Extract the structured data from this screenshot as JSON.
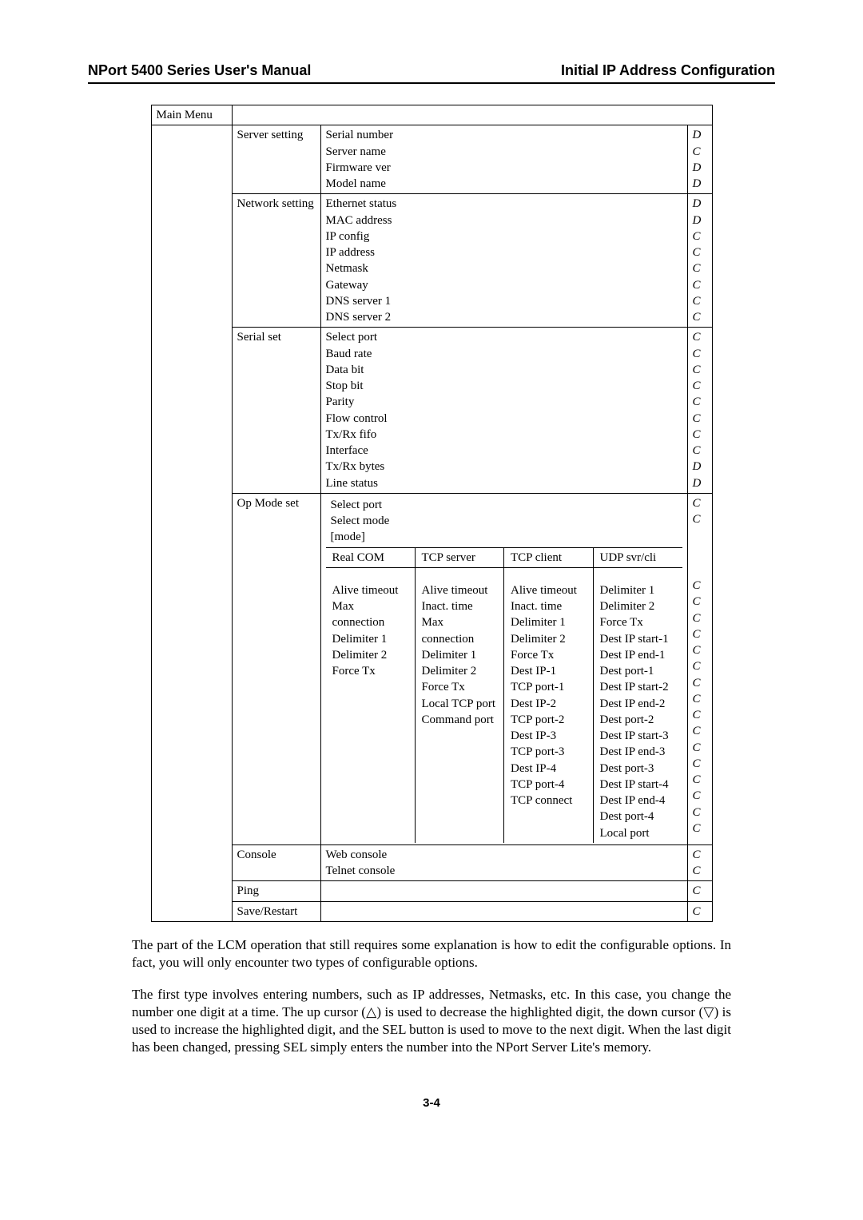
{
  "header": {
    "left": "NPort 5400 Series User's Manual",
    "right": "Initial IP Address Configuration"
  },
  "col1": {
    "main_menu": "Main Menu"
  },
  "c2": {
    "server": "Server setting",
    "network": "Network setting",
    "serial": "Serial set",
    "opmode": "Op Mode set",
    "console": "Console",
    "ping": "Ping",
    "save": "Save/Restart"
  },
  "server_items": [
    "Serial number",
    "Server name",
    "Firmware ver",
    "Model name"
  ],
  "server_dc": [
    "D",
    "C",
    "D",
    "D"
  ],
  "network_items": [
    "Ethernet status",
    "MAC address",
    "IP config",
    "IP address",
    "Netmask",
    "Gateway",
    "DNS server 1",
    "DNS server 2"
  ],
  "network_dc": [
    "D",
    "D",
    "C",
    "C",
    "C",
    "C",
    "C",
    "C"
  ],
  "serial_items": [
    "Select port",
    "Baud rate",
    "Data bit",
    "Stop bit",
    "Parity",
    "Flow control",
    "Tx/Rx fifo",
    "Interface",
    "Tx/Rx bytes",
    "Line status"
  ],
  "serial_dc": [
    "C",
    "C",
    "C",
    "C",
    "C",
    "C",
    "C",
    "C",
    "D",
    "D"
  ],
  "op_head": [
    "Select port",
    "Select mode",
    "[mode]"
  ],
  "op_head_dc": [
    "C",
    "C"
  ],
  "mode_hdr": [
    "Real COM",
    "TCP server",
    "TCP client",
    "UDP svr/cli"
  ],
  "mode_cols": {
    "real": [
      "Alive timeout",
      "Max connection",
      "Delimiter 1",
      "Delimiter 2",
      "Force Tx"
    ],
    "tcpsrv": [
      "Alive timeout",
      "Inact. time",
      "Max connection",
      "Delimiter 1",
      "Delimiter 2",
      "Force Tx",
      "Local TCP port",
      "Command port"
    ],
    "tcpcli": [
      "Alive timeout",
      "Inact. time",
      "Delimiter 1",
      "Delimiter 2",
      "Force Tx",
      "Dest IP-1",
      "TCP port-1",
      "Dest IP-2",
      "TCP port-2",
      "Dest IP-3",
      "TCP port-3",
      "Dest IP-4",
      "TCP port-4",
      "TCP connect"
    ],
    "udp": [
      "Delimiter 1",
      "Delimiter 2",
      "Force Tx",
      "Dest IP start-1",
      "Dest IP end-1",
      "Dest port-1",
      "Dest IP start-2",
      "Dest IP end-2",
      "Dest port-2",
      "Dest IP start-3",
      "Dest IP end-3",
      "Dest port-3",
      "Dest IP start-4",
      "Dest IP end-4",
      "Dest port-4",
      "Local port"
    ]
  },
  "mode_dc_count": 16,
  "mode_dc_letter": "C",
  "console_items": [
    "Web console",
    "Telnet console"
  ],
  "console_dc": [
    "C",
    "C"
  ],
  "ping_dc": "C",
  "save_dc": "C",
  "para1": "The part of the LCM operation that still requires some explanation is how to edit the configurable options. In fact, you will only encounter two types of configurable options.",
  "para2": "The first type involves entering numbers, such as IP addresses, Netmasks, etc. In this case, you change the number one digit at a time. The up cursor (△) is used to decrease the highlighted digit, the down cursor (▽) is used to increase the highlighted digit, and the SEL button is used to move to the next digit. When the last digit has been changed, pressing SEL simply enters the number into the NPort Server Lite's memory.",
  "page_num": "3-4"
}
